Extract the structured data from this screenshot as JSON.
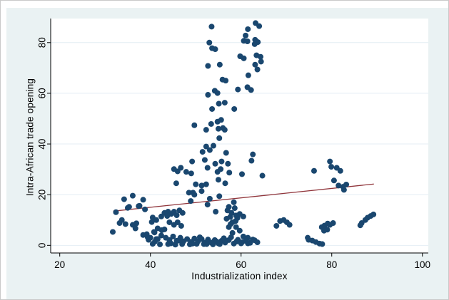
{
  "figure": {
    "outer_background": "#eaf2f3",
    "plot_background": "#ffffff",
    "page_background": "#ffffff",
    "frame_border_color": "#c9c9c9"
  },
  "chart_data": {
    "type": "scatter",
    "title": "",
    "xlabel": "Industrialization index",
    "ylabel": "Intra-African trade opening",
    "x_ticks": [
      20,
      40,
      60,
      80,
      100
    ],
    "y_ticks": [
      0,
      20,
      40,
      60,
      80
    ],
    "xlim": [
      18,
      101.3
    ],
    "ylim": [
      -3,
      89.5
    ],
    "grid": "horizontal-only",
    "gridline_color": "#e4eef4",
    "axis_color": "#000000",
    "tick_label_color": "#000000",
    "tick_font_size": 13.5,
    "marker_color": "#1a476f",
    "marker_radius": 4,
    "fit_line": {
      "name": "linear-fit-line",
      "color": "#90353b",
      "width": 1.3,
      "x1": 31.8,
      "y1": 13.5,
      "x2": 89.3,
      "y2": 24.2
    },
    "series": [
      {
        "name": "observations",
        "points": [
          [
            53.5,
            86.3
          ],
          [
            63.2,
            87.7
          ],
          [
            64,
            86.5
          ],
          [
            61.5,
            85.3
          ],
          [
            61,
            82.8
          ],
          [
            63.1,
            81.1
          ],
          [
            63.7,
            80.2
          ],
          [
            63,
            79.4
          ],
          [
            60.6,
            80.7
          ],
          [
            61.4,
            80.5
          ],
          [
            53,
            80
          ],
          [
            53.6,
            77.8
          ],
          [
            54.3,
            77.4
          ],
          [
            63.4,
            75
          ],
          [
            64.3,
            74.4
          ],
          [
            64.4,
            72.5
          ],
          [
            59.8,
            74.6
          ],
          [
            60.6,
            73.8
          ],
          [
            52.7,
            70.8
          ],
          [
            55.3,
            71.3
          ],
          [
            63.1,
            71.3
          ],
          [
            63.6,
            69.4
          ],
          [
            61.6,
            67.1
          ],
          [
            55.9,
            65.4
          ],
          [
            56.6,
            65
          ],
          [
            59.3,
            61.5
          ],
          [
            61.4,
            62.4
          ],
          [
            62.2,
            61.3
          ],
          [
            54.2,
            61
          ],
          [
            54.8,
            60.1
          ],
          [
            52.7,
            59.4
          ],
          [
            55.1,
            55.9
          ],
          [
            56.4,
            56.3
          ],
          [
            53.6,
            53.8
          ],
          [
            58.5,
            53.8
          ],
          [
            54.8,
            48.8
          ],
          [
            55.6,
            49.5
          ],
          [
            49.7,
            47.4
          ],
          [
            53.4,
            47.9
          ],
          [
            55,
            46
          ],
          [
            56,
            46.3
          ],
          [
            56.4,
            45.6
          ],
          [
            52.3,
            45.6
          ],
          [
            55.2,
            42.3
          ],
          [
            52.3,
            39
          ],
          [
            53.9,
            39.3
          ],
          [
            53.1,
            37.6
          ],
          [
            51.5,
            36.9
          ],
          [
            56.7,
            36.5
          ],
          [
            62.6,
            35.9
          ],
          [
            62.3,
            33.4
          ],
          [
            49.2,
            33.1
          ],
          [
            52,
            33.7
          ],
          [
            54.3,
            32.2
          ],
          [
            55.7,
            33.1
          ],
          [
            57.1,
            32.2
          ],
          [
            46.7,
            30.6
          ],
          [
            47.9,
            29
          ],
          [
            49,
            28.4
          ],
          [
            52.6,
            30.6
          ],
          [
            55.5,
            30.1
          ],
          [
            54.8,
            29
          ],
          [
            57.4,
            28.7
          ],
          [
            60.2,
            28.1
          ],
          [
            64.7,
            27.5
          ],
          [
            55,
            25.9
          ],
          [
            56.5,
            24.5
          ],
          [
            50,
            24.1
          ],
          [
            51.3,
            23.6
          ],
          [
            52.3,
            24.1
          ],
          [
            48.5,
            20.8
          ],
          [
            49.7,
            20
          ],
          [
            45.2,
            30.1
          ],
          [
            46,
            29.2
          ],
          [
            45.7,
            24.5
          ],
          [
            49.4,
            20.8
          ],
          [
            51.3,
            21.4
          ],
          [
            53.1,
            18.4
          ],
          [
            55.2,
            19.4
          ],
          [
            48.9,
            17.5
          ],
          [
            52.6,
            16.1
          ],
          [
            54.4,
            13.3
          ],
          [
            40.5,
            11
          ],
          [
            41.3,
            10
          ],
          [
            42.4,
            11.4
          ],
          [
            43.1,
            12.8
          ],
          [
            43.9,
            13.3
          ],
          [
            44.6,
            12.4
          ],
          [
            45.2,
            13.3
          ],
          [
            45.8,
            11.9
          ],
          [
            46.4,
            13.8
          ],
          [
            47.1,
            12.8
          ],
          [
            44.2,
            9.1
          ],
          [
            45.2,
            8.1
          ],
          [
            46,
            9.1
          ],
          [
            46.8,
            7.7
          ],
          [
            41.6,
            6.7
          ],
          [
            40.8,
            5.3
          ],
          [
            43.1,
            6.3
          ],
          [
            58.4,
            17
          ],
          [
            57.3,
            15.2
          ],
          [
            58.6,
            14.7
          ],
          [
            57.9,
            12.8
          ],
          [
            59.7,
            12.4
          ],
          [
            60.5,
            11.4
          ],
          [
            58.1,
            9.1
          ],
          [
            57.7,
            8.4
          ],
          [
            58.8,
            9.6
          ],
          [
            57.3,
            7.2
          ],
          [
            58.9,
            7.2
          ],
          [
            59.7,
            5.8
          ],
          [
            58.1,
            4.9
          ],
          [
            60.5,
            3.5
          ],
          [
            61.5,
            3
          ],
          [
            62.6,
            2.3
          ],
          [
            57.3,
            2.1
          ],
          [
            58.4,
            0.7
          ],
          [
            56.8,
            10.5
          ],
          [
            59.2,
            10.8
          ],
          [
            57,
            13.8
          ],
          [
            67.8,
            7.7
          ],
          [
            68.6,
            9.6
          ],
          [
            69.4,
            10
          ],
          [
            70.1,
            9.1
          ],
          [
            70.7,
            8.1
          ],
          [
            39.2,
            4.4
          ],
          [
            40,
            3
          ],
          [
            41.3,
            2.5
          ],
          [
            42.4,
            3.9
          ],
          [
            43.4,
            3
          ],
          [
            44.2,
            2.1
          ],
          [
            45,
            3.5
          ],
          [
            45.8,
            1.8
          ],
          [
            46.6,
            3
          ],
          [
            47.3,
            1.6
          ],
          [
            48.1,
            2.5
          ],
          [
            48.9,
            1.4
          ],
          [
            49.7,
            2.7
          ],
          [
            50.5,
            1.6
          ],
          [
            51.3,
            2.5
          ],
          [
            52,
            1.1
          ],
          [
            52.7,
            2.3
          ],
          [
            53.4,
            1.1
          ],
          [
            54.2,
            2.1
          ],
          [
            55,
            0.8
          ],
          [
            55.7,
            1.8
          ],
          [
            56.5,
            1.1
          ],
          [
            40.5,
            0.6
          ],
          [
            42.1,
            0.4
          ],
          [
            43.9,
            0.5
          ],
          [
            45.5,
            0.3
          ],
          [
            47,
            0.5
          ],
          [
            48.7,
            0.4
          ],
          [
            50.2,
            0.6
          ],
          [
            51.8,
            0.5
          ],
          [
            53.8,
            0.4
          ],
          [
            55.3,
            0.5
          ],
          [
            56.2,
            2.8
          ],
          [
            59,
            1.5
          ],
          [
            60,
            0.8
          ],
          [
            61,
            1.8
          ],
          [
            62,
            1
          ],
          [
            63,
            2
          ],
          [
            63.6,
            1.2
          ],
          [
            44.5,
            0.8
          ],
          [
            46.2,
            1.9
          ],
          [
            49.3,
            0.7
          ],
          [
            50.9,
            3.2
          ],
          [
            52.4,
            0.5
          ],
          [
            54.6,
            1.5
          ],
          [
            41,
            1.5
          ],
          [
            39.6,
            2.2
          ],
          [
            57.8,
            3.2
          ],
          [
            59.3,
            2.2
          ],
          [
            60.2,
            1.2
          ],
          [
            61.5,
            0.8
          ],
          [
            58.9,
            11.8
          ],
          [
            57.6,
            11.2
          ],
          [
            32.4,
            13.1
          ],
          [
            34.2,
            18.2
          ],
          [
            36.1,
            19.6
          ],
          [
            35.3,
            15.2
          ],
          [
            37.6,
            15.6
          ],
          [
            38.4,
            18
          ],
          [
            38.8,
            14.2
          ],
          [
            35,
            14.8
          ],
          [
            37.4,
            15.5
          ],
          [
            33.7,
            10
          ],
          [
            33.2,
            8.8
          ],
          [
            34.5,
            8.4
          ],
          [
            36.1,
            8.1
          ],
          [
            36.7,
            6.7
          ],
          [
            36.9,
            8.7
          ],
          [
            40.3,
            9.2
          ],
          [
            31.7,
            5.3
          ],
          [
            38.4,
            4.1
          ],
          [
            39.4,
            3.2
          ],
          [
            40.9,
            5.1
          ],
          [
            41.6,
            2.5
          ],
          [
            42.5,
            6
          ],
          [
            43.7,
            11.6
          ],
          [
            76.1,
            29.4
          ],
          [
            79.6,
            33.1
          ],
          [
            79.9,
            31
          ],
          [
            81.1,
            30.6
          ],
          [
            81.9,
            29.4
          ],
          [
            80.5,
            25.6
          ],
          [
            81.5,
            23.6
          ],
          [
            82.5,
            23.1
          ],
          [
            83.2,
            24
          ],
          [
            82.7,
            21.9
          ],
          [
            77.8,
            7.2
          ],
          [
            78.4,
            7.8
          ],
          [
            79.1,
            8.6
          ],
          [
            79.6,
            8.1
          ],
          [
            80.3,
            8.8
          ],
          [
            78.3,
            5.8
          ],
          [
            79,
            6.2
          ],
          [
            86.6,
            8.8
          ],
          [
            87.4,
            10
          ],
          [
            87.9,
            10.9
          ],
          [
            88.6,
            11.6
          ],
          [
            89.2,
            12.2
          ],
          [
            86.3,
            7.9
          ],
          [
            74.9,
            2.2
          ],
          [
            75.7,
            1.9
          ],
          [
            76.5,
            1.3
          ],
          [
            77.3,
            0.7
          ],
          [
            77.9,
            0.5
          ],
          [
            74.7,
            3
          ]
        ]
      }
    ]
  }
}
